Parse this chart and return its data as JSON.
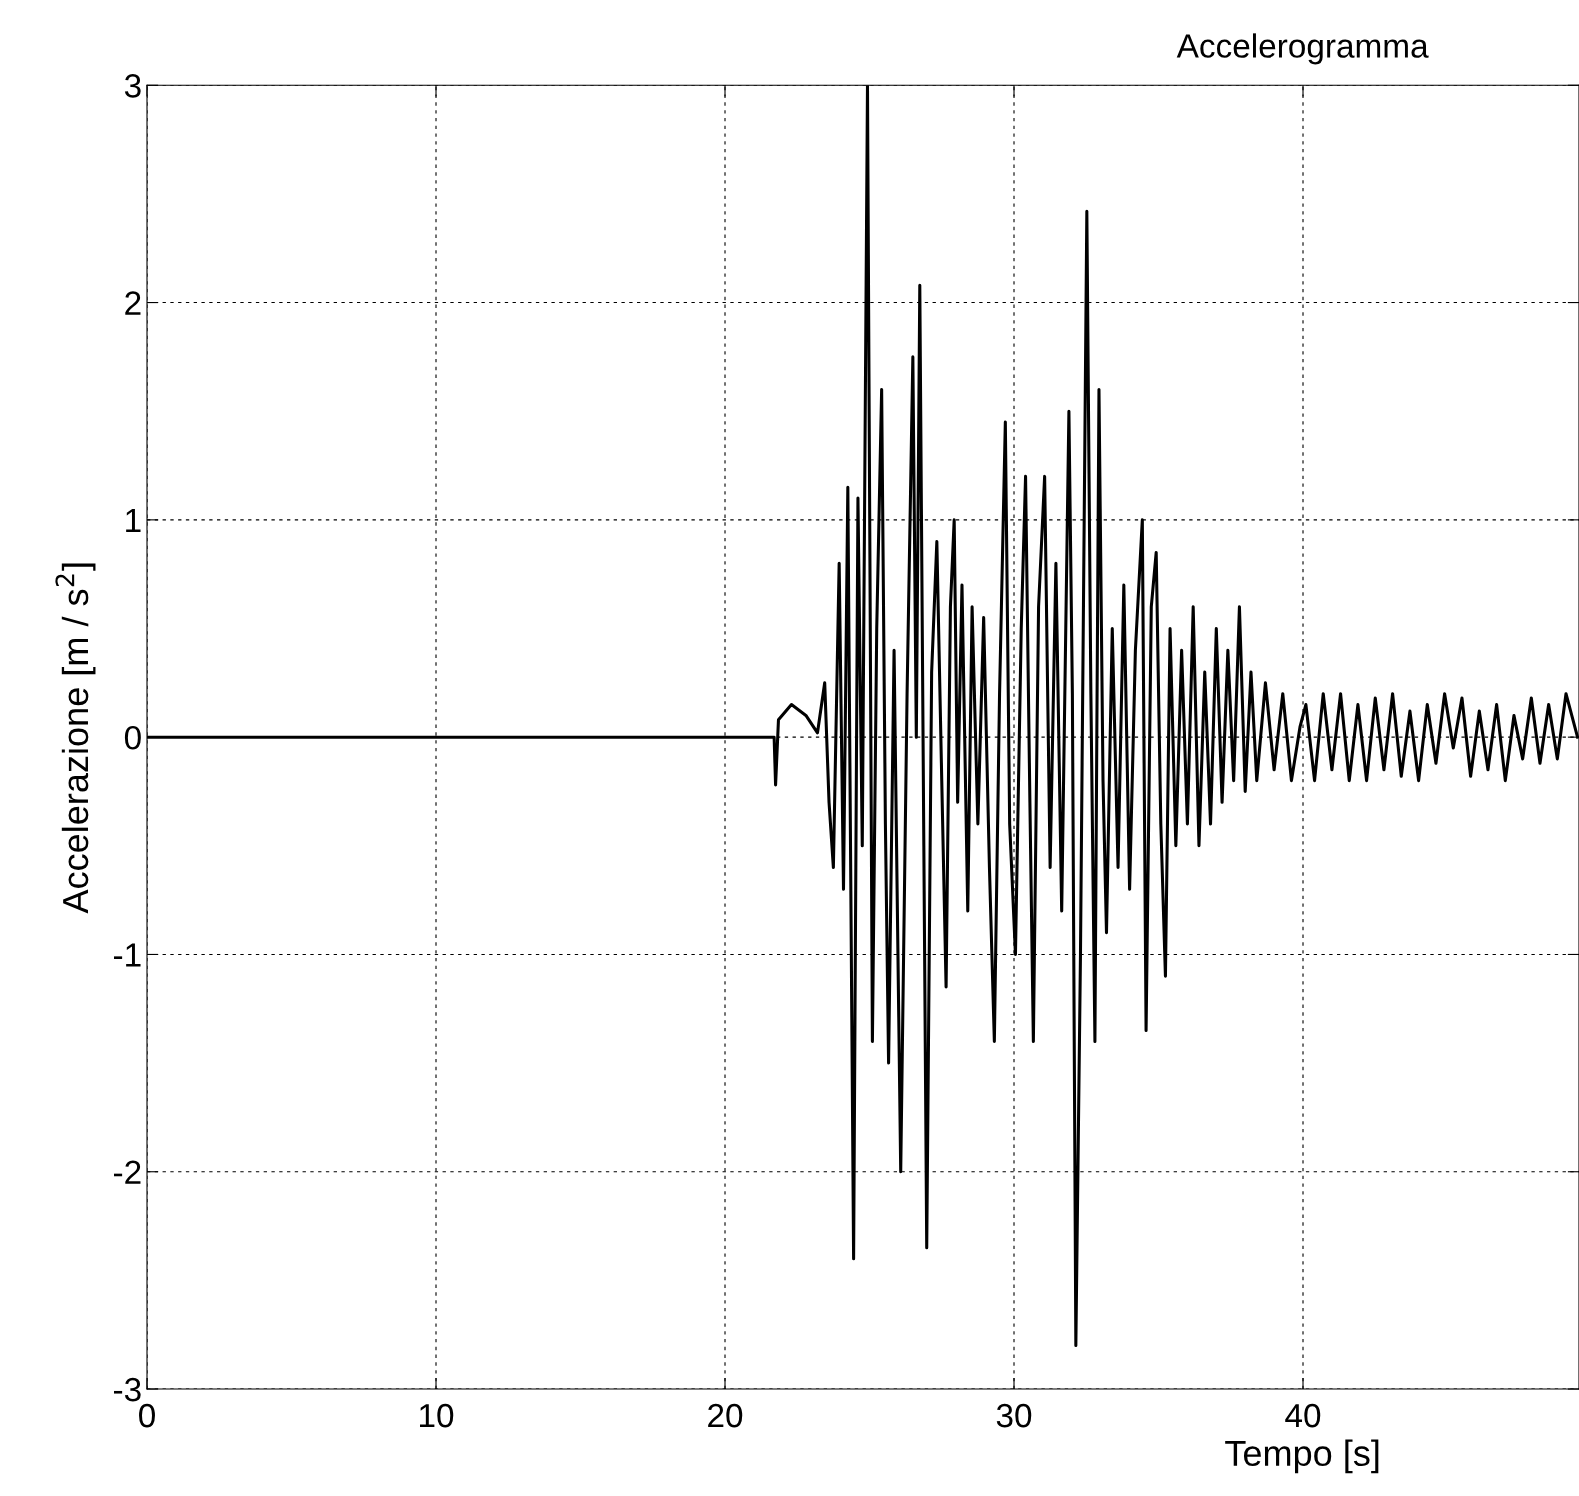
{
  "chart_data": {
    "type": "line",
    "title": "Accelerogramma",
    "xlabel": "Tempo [s]",
    "ylabel": "Accelerazione [m / s$^{2}$]",
    "xlim": [
      0,
      49.55
    ],
    "xticks": [
      0,
      10,
      20,
      30,
      40
    ],
    "ylim": [
      -3,
      3
    ],
    "yticks": [
      -3,
      -2,
      -1,
      0,
      1,
      2,
      3
    ],
    "grid": true,
    "line_style": "solid",
    "marker": "none",
    "series": [
      {
        "color": "#000000",
        "x": [
          0,
          21.7,
          21.75,
          21.85,
          22.3,
          22.8,
          23.2,
          23.45,
          23.6,
          23.75,
          23.95,
          24.1,
          24.25,
          24.45,
          24.6,
          24.75,
          24.93,
          25.1,
          25.25,
          25.42,
          25.55,
          25.66,
          25.85,
          26.08,
          26.3,
          26.5,
          26.62,
          26.74,
          26.88,
          26.98,
          27.15,
          27.33,
          27.5,
          27.65,
          27.8,
          27.93,
          28.05,
          28.2,
          28.4,
          28.55,
          28.75,
          28.95,
          29.15,
          29.32,
          29.5,
          29.7,
          29.85,
          30.05,
          30.25,
          30.4,
          30.55,
          30.67,
          30.85,
          31.06,
          31.25,
          31.45,
          31.65,
          31.9,
          32.02,
          32.14,
          32.3,
          32.52,
          32.66,
          32.8,
          32.94,
          33.08,
          33.2,
          33.4,
          33.6,
          33.8,
          34.0,
          34.2,
          34.44,
          34.57,
          34.75,
          34.92,
          35.08,
          35.24,
          35.4,
          35.6,
          35.8,
          36.0,
          36.2,
          36.4,
          36.6,
          36.8,
          37.0,
          37.2,
          37.4,
          37.6,
          37.8,
          38.0,
          38.2,
          38.4,
          38.7,
          39.0,
          39.3,
          39.6,
          39.9,
          40.1,
          40.4,
          40.7,
          41.0,
          41.3,
          41.6,
          41.9,
          42.2,
          42.5,
          42.8,
          43.1,
          43.4,
          43.7,
          44.0,
          44.3,
          44.6,
          44.9,
          45.2,
          45.5,
          45.8,
          46.1,
          46.4,
          46.7,
          47.0,
          47.3,
          47.6,
          47.9,
          48.2,
          48.5,
          48.8,
          49.1,
          49.5
        ],
        "values": [
          0,
          0,
          -0.22,
          0.08,
          0.15,
          0.1,
          0.02,
          0.25,
          -0.3,
          -0.6,
          0.8,
          -0.7,
          1.15,
          -2.4,
          1.1,
          -0.5,
          3.0,
          -1.4,
          0.5,
          1.6,
          -0.4,
          -1.5,
          0.4,
          -2.0,
          0.2,
          1.75,
          0.0,
          2.08,
          -0.5,
          -2.35,
          0.3,
          0.9,
          -0.2,
          -1.15,
          0.6,
          1.0,
          -0.3,
          0.7,
          -0.8,
          0.6,
          -0.4,
          0.55,
          -0.6,
          -1.4,
          0.2,
          1.45,
          -0.4,
          -1.0,
          0.5,
          1.2,
          -0.3,
          -1.4,
          0.6,
          1.2,
          -0.6,
          0.8,
          -0.8,
          1.5,
          0.2,
          -2.8,
          -1.0,
          2.42,
          0.2,
          -1.4,
          1.6,
          -0.2,
          -0.9,
          0.5,
          -0.6,
          0.7,
          -0.7,
          0.4,
          1.0,
          -1.35,
          0.6,
          0.85,
          -0.4,
          -1.1,
          0.5,
          -0.5,
          0.4,
          -0.4,
          0.6,
          -0.5,
          0.3,
          -0.4,
          0.5,
          -0.3,
          0.4,
          -0.2,
          0.6,
          -0.25,
          0.3,
          -0.2,
          0.25,
          -0.15,
          0.2,
          -0.2,
          0.05,
          0.15,
          -0.2,
          0.2,
          -0.15,
          0.2,
          -0.2,
          0.15,
          -0.2,
          0.18,
          -0.15,
          0.2,
          -0.18,
          0.12,
          -0.2,
          0.15,
          -0.12,
          0.2,
          -0.05,
          0.18,
          -0.18,
          0.12,
          -0.15,
          0.15,
          -0.2,
          0.1,
          -0.1,
          0.18,
          -0.12,
          0.15,
          -0.1,
          0.2,
          0.0
        ]
      }
    ]
  }
}
